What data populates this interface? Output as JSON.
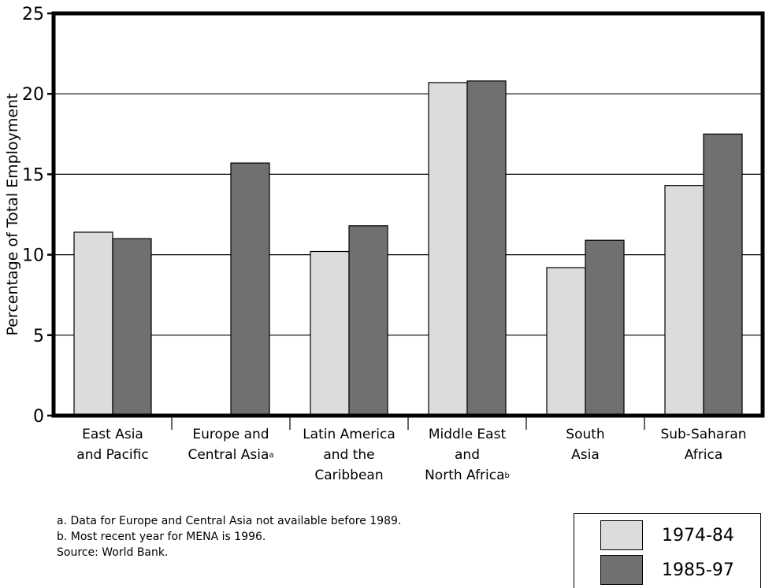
{
  "chart_data": {
    "type": "bar",
    "ylabel": "Percentage of Total Employment",
    "ylim": [
      0,
      25
    ],
    "yticks": [
      "0",
      "5",
      "10",
      "15",
      "20",
      "25"
    ],
    "ytick_values": [
      0,
      5,
      10,
      15,
      20,
      25
    ],
    "grid": true,
    "legend_position": "bottom-right",
    "categories": [
      [
        "East Asia",
        "and Pacific"
      ],
      [
        "Europe and",
        "Central Asia",
        "a"
      ],
      [
        "Latin America",
        "and the",
        "Caribbean"
      ],
      [
        "Middle East",
        "and",
        "North Africa",
        "b"
      ],
      [
        "South",
        "Asia"
      ],
      [
        "Sub-Saharan",
        "Africa"
      ]
    ],
    "series": [
      {
        "name": "1974-84",
        "color": "#dcdcdc",
        "values": [
          11.4,
          null,
          10.2,
          20.7,
          9.2,
          14.3
        ]
      },
      {
        "name": "1985-97",
        "color": "#707070",
        "values": [
          11.0,
          15.7,
          11.8,
          20.8,
          10.9,
          17.5
        ]
      }
    ]
  },
  "notes": {
    "a": "a. Data for Europe and Central Asia not available before 1989.",
    "b": "b. Most recent year for MENA is 1996.",
    "source": "Source: World Bank."
  },
  "legend": {
    "items": [
      {
        "label": "1974-84",
        "color": "#dcdcdc"
      },
      {
        "label": "1985-97",
        "color": "#707070"
      }
    ]
  }
}
